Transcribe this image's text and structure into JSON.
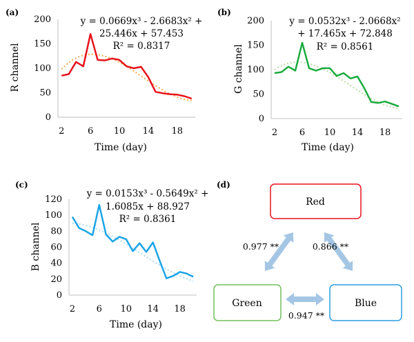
{
  "colors": {
    "red": "#e8111b",
    "red_trend": "#f5a94a",
    "green": "#1aab3e",
    "green_trend": "#bcdca4",
    "blue": "#1aa4e6",
    "blue_trend": "#a9d9ef",
    "axis": "#bfbfbf",
    "arrow": "#a4c6e4",
    "node_red": "#e8111b",
    "node_green": "#70c05a",
    "node_blue": "#2a9ee0"
  },
  "chart_data": [
    {
      "panel": "(a)",
      "type": "line",
      "ylabel": "R channel",
      "xlabel": "Time (day)",
      "ylim": [
        0,
        200
      ],
      "yticks": [
        0,
        50,
        100,
        150,
        200
      ],
      "xticks": [
        2,
        6,
        10,
        14,
        18
      ],
      "xlim": [
        1.5,
        20.5
      ],
      "series": [
        {
          "x": [
            2,
            3,
            4,
            5,
            6,
            7,
            8,
            9,
            10,
            11,
            12,
            13,
            14,
            15,
            16,
            17,
            18,
            19,
            20
          ],
          "values": [
            85,
            88,
            113,
            104,
            170,
            117,
            116,
            120,
            117,
            104,
            100,
            103,
            82,
            52,
            49,
            47,
            46,
            43,
            38
          ]
        }
      ],
      "trendline": {
        "type": "poly3",
        "coeffs": [
          0.0669,
          -2.6683,
          25.446,
          57.453
        ]
      },
      "equation_lines": [
        "y = 0.0669x³ - 2.6683x² +",
        "25.446x + 57.453",
        "R² = 0.8317"
      ]
    },
    {
      "panel": "(b)",
      "type": "line",
      "ylabel": "G channel",
      "xlabel": "Time (day)",
      "ylim": [
        0,
        200
      ],
      "yticks": [
        0,
        50,
        100,
        150,
        200
      ],
      "xticks": [
        2,
        6,
        10,
        14,
        18
      ],
      "xlim": [
        1.5,
        20.5
      ],
      "series": [
        {
          "x": [
            2,
            3,
            4,
            5,
            6,
            7,
            8,
            9,
            10,
            11,
            12,
            13,
            14,
            15,
            16,
            17,
            18,
            19,
            20
          ],
          "values": [
            93,
            95,
            106,
            98,
            155,
            103,
            98,
            103,
            103,
            87,
            93,
            82,
            86,
            62,
            34,
            32,
            35,
            30,
            25
          ]
        }
      ],
      "trendline": {
        "type": "poly3",
        "coeffs": [
          0.0532,
          -2.0668,
          17.465,
          72.848
        ]
      },
      "equation_lines": [
        "y = 0.0532x³ - 2.0668x²",
        "+ 17.465x + 72.848",
        "R² = 0.8561"
      ]
    },
    {
      "panel": "(c)",
      "type": "line",
      "ylabel": "B channel",
      "xlabel": "Time (day)",
      "ylim": [
        0,
        120
      ],
      "yticks": [
        0,
        20,
        40,
        60,
        80,
        100,
        120
      ],
      "xticks": [
        2,
        6,
        10,
        14,
        18
      ],
      "xlim": [
        1.5,
        20.5
      ],
      "series": [
        {
          "x": [
            2,
            3,
            4,
            5,
            6,
            7,
            8,
            9,
            10,
            11,
            12,
            13,
            14,
            15,
            16,
            17,
            18,
            19,
            20
          ],
          "values": [
            98,
            84,
            80,
            75,
            113,
            76,
            67,
            73,
            70,
            55,
            65,
            54,
            66,
            43,
            21,
            24,
            29,
            27,
            23
          ]
        }
      ],
      "trendline": {
        "type": "poly3",
        "coeffs": [
          0.0153,
          -0.5649,
          1.6085,
          88.927
        ]
      },
      "equation_lines": [
        "y = 0.0153x³ - 0.5649x² +",
        "1.6085x + 88.927",
        "R² = 0.8361"
      ]
    }
  ],
  "diagram": {
    "panel": "(d)",
    "nodes": {
      "red": "Red",
      "green": "Green",
      "blue": "Blue"
    },
    "edges": {
      "red_green": "0.977 **",
      "red_blue": "0.866 **",
      "green_blue": "0.947 **"
    }
  }
}
